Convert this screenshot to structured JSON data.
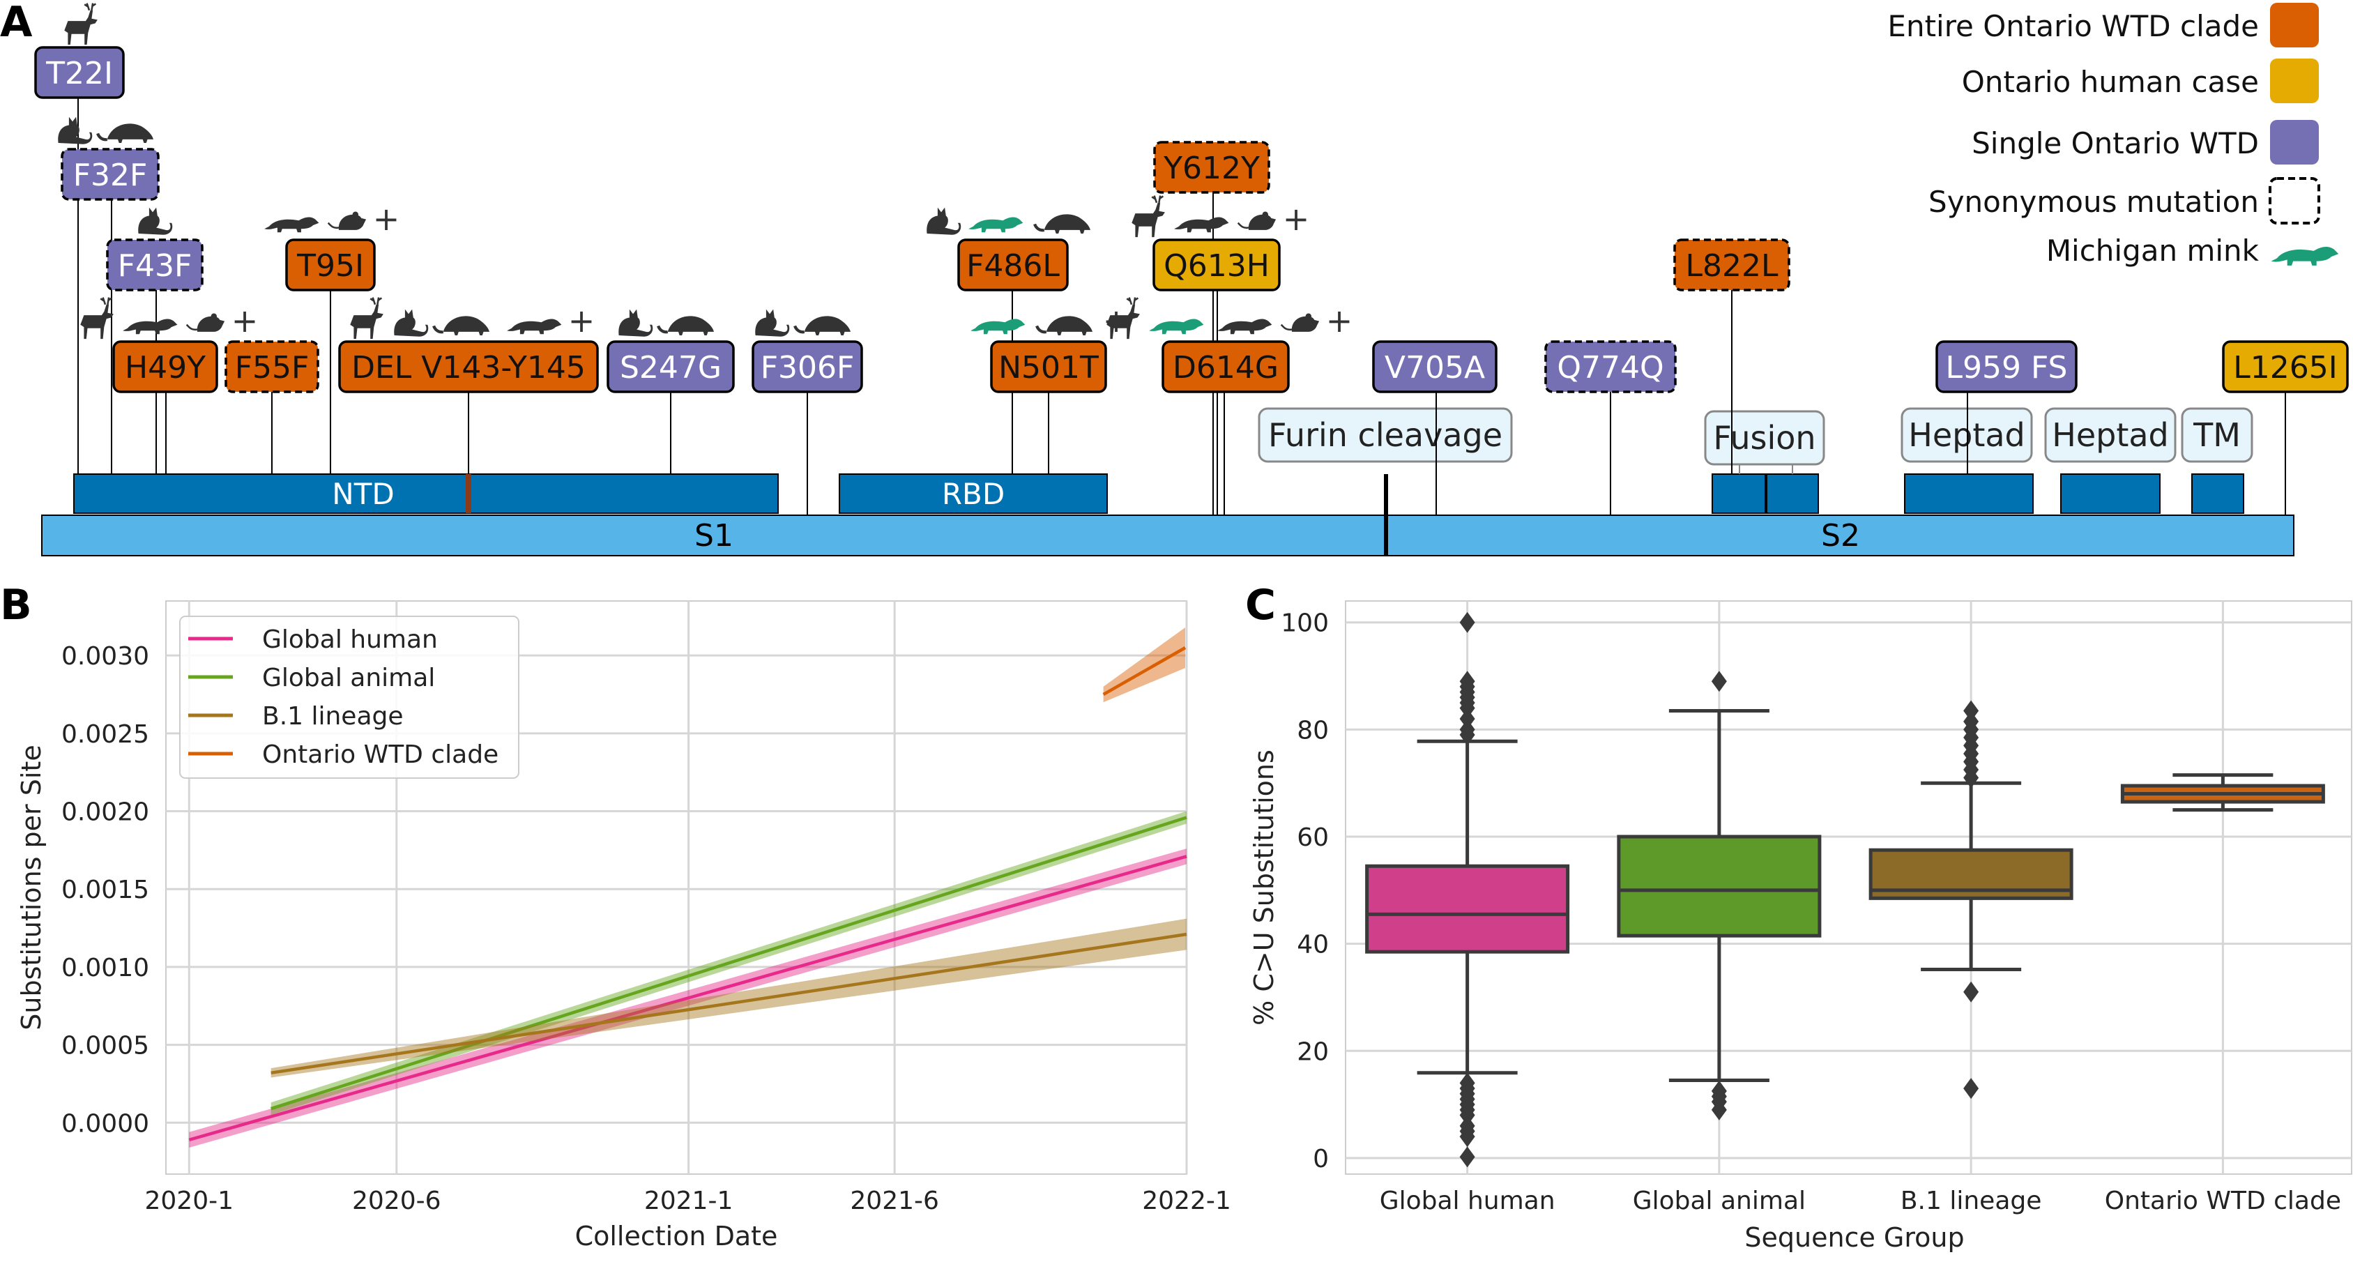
{
  "panels": {
    "a": "A",
    "b": "B",
    "c": "C"
  },
  "legend_a": {
    "entries": [
      {
        "label": "Entire Ontario WTD clade",
        "kind": "clade"
      },
      {
        "label": "Ontario human case",
        "kind": "human"
      },
      {
        "label": "Single Ontario WTD",
        "kind": "single"
      },
      {
        "label": "Synonymous mutation",
        "kind": "syn"
      },
      {
        "label": "Michigan mink",
        "kind": "mink"
      }
    ]
  },
  "colors": {
    "clade": "#d95f02",
    "human": "#e6ab02",
    "single": "#7570b3",
    "mink": "#1b9e77",
    "domain_dark": "#0072b2",
    "domain_light": "#56b4e9",
    "label_box": "#e6f5fc",
    "global_human": "#e7298a",
    "global_animal": "#66a61e",
    "b1": "#a6761d",
    "ontario_wtd": "#d95f02",
    "box_human": "#d0408a",
    "box_animal": "#5e9a2a",
    "box_b1": "#8c6a28",
    "box_ontario": "#c96414"
  },
  "spike": {
    "s1_label": "S1",
    "s2_label": "S2",
    "domains": [
      {
        "id": "ntd",
        "label": "NTD"
      },
      {
        "id": "rbd",
        "label": "RBD"
      }
    ],
    "region_labels": [
      {
        "id": "furin",
        "label": "Furin cleavage"
      },
      {
        "id": "fusion",
        "label": "Fusion"
      },
      {
        "id": "heptad1",
        "label": "Heptad"
      },
      {
        "id": "heptad2",
        "label": "Heptad"
      },
      {
        "id": "tm",
        "label": "TM"
      }
    ]
  },
  "mutations": [
    {
      "label": "T22I",
      "category": "single",
      "synonymous": false,
      "icons": [
        "deer"
      ],
      "plus": false
    },
    {
      "label": "F32F",
      "category": "single",
      "synonymous": true,
      "icons": [
        "cat",
        "pangolin"
      ],
      "plus": false
    },
    {
      "label": "F43F",
      "category": "single",
      "synonymous": true,
      "icons": [
        "cat"
      ],
      "plus": false
    },
    {
      "label": "H49Y",
      "category": "clade",
      "synonymous": false,
      "icons": [
        "deer",
        "mink",
        "rodent"
      ],
      "plus": true
    },
    {
      "label": "F55F",
      "category": "clade",
      "synonymous": true,
      "icons": [],
      "plus": false
    },
    {
      "label": "T95I",
      "category": "clade",
      "synonymous": false,
      "icons": [
        "mink",
        "rodent"
      ],
      "plus": true
    },
    {
      "label": "DEL V143-Y145",
      "category": "clade",
      "synonymous": false,
      "icons": [
        "deer",
        "cat",
        "pangolin",
        "mink"
      ],
      "plus": true
    },
    {
      "label": "S247G",
      "category": "single",
      "synonymous": false,
      "icons": [
        "cat",
        "pangolin"
      ],
      "plus": false
    },
    {
      "label": "F306F",
      "category": "single",
      "synonymous": false,
      "icons": [
        "cat",
        "pangolin"
      ],
      "plus": false
    },
    {
      "label": "F486L",
      "category": "clade",
      "synonymous": false,
      "icons": [
        "cat",
        "mink-g",
        "pangolin"
      ],
      "plus": false
    },
    {
      "label": "N501T",
      "category": "clade",
      "synonymous": false,
      "icons": [
        "mink-g",
        "pangolin"
      ],
      "plus": true
    },
    {
      "label": "Y612Y",
      "category": "clade",
      "synonymous": true,
      "icons": [],
      "plus": false
    },
    {
      "label": "Q613H",
      "category": "human",
      "synonymous": false,
      "icons": [
        "deer",
        "mink",
        "rodent"
      ],
      "plus": true
    },
    {
      "label": "D614G",
      "category": "clade",
      "synonymous": false,
      "icons": [
        "deer",
        "mink-g",
        "mink",
        "rodent"
      ],
      "plus": true
    },
    {
      "label": "V705A",
      "category": "single",
      "synonymous": false,
      "icons": [],
      "plus": false
    },
    {
      "label": "Q774Q",
      "category": "single",
      "synonymous": true,
      "icons": [],
      "plus": false
    },
    {
      "label": "L822L",
      "category": "clade",
      "synonymous": true,
      "icons": [],
      "plus": false
    },
    {
      "label": "L959 FS",
      "category": "single",
      "synonymous": false,
      "icons": [],
      "plus": false
    },
    {
      "label": "L1265I",
      "category": "human",
      "synonymous": false,
      "icons": [],
      "plus": false
    }
  ],
  "chart_b": {
    "type": "line",
    "ylabel": "Substitutions per Site",
    "xlabel": "Collection Date",
    "x_ticks": [
      "2020-1",
      "2020-6",
      "2021-1",
      "2021-6",
      "2022-1"
    ],
    "y_ticks": [
      "0.0000",
      "0.0005",
      "0.0010",
      "0.0015",
      "0.0020",
      "0.0025",
      "0.0030"
    ],
    "xlim": [
      "2019-12-15",
      "2022-01-01"
    ],
    "ylim": [
      -0.00033,
      0.00335
    ],
    "grid": true,
    "legend_position": "top-left",
    "series": [
      {
        "name": "Global human",
        "color_key": "global_human",
        "x": [
          "2020-01-01",
          "2022-01-01"
        ],
        "y": [
          -0.00011,
          0.00171
        ],
        "band": 5e-05
      },
      {
        "name": "Global animal",
        "color_key": "global_animal",
        "x": [
          "2020-03-01",
          "2022-01-01"
        ],
        "y": [
          9e-05,
          0.00196
        ],
        "band": 4e-05
      },
      {
        "name": "B.1 lineage",
        "color_key": "b1",
        "x": [
          "2020-03-01",
          "2022-01-01"
        ],
        "y": [
          0.00032,
          0.00121
        ],
        "band": 3e-05,
        "band_end": 0.0001
      },
      {
        "name": "Ontario WTD clade",
        "color_key": "ontario_wtd",
        "x": [
          "2021-11-01",
          "2021-12-31"
        ],
        "y": [
          0.00275,
          0.00305
        ],
        "band": 5e-05,
        "band_end": 0.00013
      }
    ]
  },
  "chart_c": {
    "type": "box",
    "ylabel": "% C>U Substitutions",
    "xlabel": "Sequence Group",
    "y_ticks": [
      "0",
      "20",
      "40",
      "60",
      "80",
      "100"
    ],
    "ylim": [
      -3,
      104
    ],
    "grid": true,
    "categories": [
      "Global human",
      "Global animal",
      "B.1 lineage",
      "Ontario WTD clade"
    ],
    "boxes": [
      {
        "category": "Global human",
        "color_key": "box_human",
        "q1": 38.5,
        "median": 45.5,
        "q3": 54.5,
        "whisker_low": 15.9,
        "whisker_high": 77.8,
        "outliers": [
          100,
          89,
          88,
          87,
          86,
          85,
          84,
          82,
          80,
          79,
          14,
          13,
          12,
          11,
          10,
          9,
          8,
          6,
          5,
          4,
          0.2
        ]
      },
      {
        "category": "Global animal",
        "color_key": "box_animal",
        "q1": 41.5,
        "median": 50,
        "q3": 60,
        "whisker_low": 14.5,
        "whisker_high": 83.5,
        "outliers": [
          89,
          12.5,
          11.5,
          10.5,
          9
        ]
      },
      {
        "category": "B.1 lineage",
        "color_key": "box_b1",
        "q1": 48.5,
        "median": 50,
        "q3": 57.5,
        "whisker_low": 35.2,
        "whisker_high": 70,
        "outliers": [
          83.5,
          81.5,
          80,
          78.5,
          77,
          75.5,
          74,
          72.5,
          71,
          31,
          13
        ]
      },
      {
        "category": "Ontario WTD clade",
        "color_key": "box_ontario",
        "q1": 66.5,
        "median": 68,
        "q3": 69.5,
        "whisker_low": 65,
        "whisker_high": 71.5,
        "outliers": []
      }
    ]
  }
}
